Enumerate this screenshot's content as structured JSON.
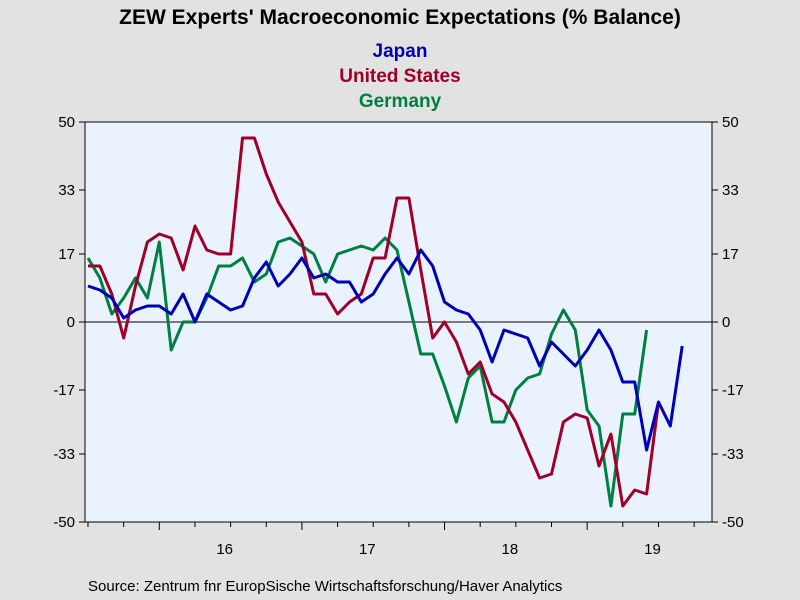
{
  "chart_data": {
    "type": "line",
    "title": "ZEW Experts' Macroeconomic Expectations (% Balance)",
    "source": "Source:  Zentrum fnr EuropSische Wirtschaftsforschung/Haver Analytics",
    "ylim": [
      -50,
      50
    ],
    "yticks": [
      50,
      33,
      17,
      0,
      -17,
      -33,
      -50
    ],
    "ytick_labels": [
      "50",
      "33",
      "17",
      "0",
      "-17",
      "-33",
      "-50"
    ],
    "x_start": "2015-07",
    "x_end": "2019-11",
    "year_labels": [
      "16",
      "17",
      "18",
      "19"
    ],
    "zero_line": true,
    "grid": false,
    "legend_position": "top-center",
    "colors": {
      "plot_bg": "#eaf3fd",
      "page_bg": "#e2e2e2"
    },
    "series": [
      {
        "name": "Japan",
        "color": "#0000b4",
        "values": [
          9,
          8,
          6,
          1,
          3,
          4,
          4,
          2,
          7,
          0,
          7,
          5,
          3,
          4,
          11,
          15,
          9,
          12,
          16,
          11,
          12,
          10,
          10,
          5,
          7,
          12,
          16,
          12,
          18,
          14,
          5,
          3,
          2,
          -2,
          -10,
          -2,
          -3,
          -4,
          -11,
          -5,
          -8,
          -11,
          -7,
          -2,
          -7,
          -15,
          -15,
          -32,
          -20,
          -26,
          -6
        ],
        "legend_color": "#0000b4"
      },
      {
        "name": "United States",
        "color": "#a00028",
        "values": [
          14,
          14,
          7,
          -4,
          9,
          20,
          22,
          21,
          13,
          24,
          18,
          17,
          17,
          46,
          46,
          37,
          30,
          25,
          20,
          7,
          7,
          2,
          5,
          7,
          16,
          16,
          31,
          31,
          13,
          -4,
          0,
          -5,
          -13,
          -10,
          -18,
          -20,
          -25,
          -32,
          -39,
          -38,
          -25,
          -23,
          -24,
          -36,
          -28,
          -46,
          -42,
          -43,
          -20
        ],
        "legend_color": "#a00028"
      },
      {
        "name": "Germany",
        "color": "#008040",
        "values": [
          16,
          11,
          2,
          6,
          11,
          6,
          20,
          -7,
          0,
          0,
          6,
          14,
          14,
          16,
          10,
          12,
          20,
          21,
          19,
          17,
          10,
          17,
          18,
          19,
          18,
          21,
          18,
          5,
          -8,
          -8,
          -16,
          -25,
          -14,
          -11,
          -25,
          -25,
          -17,
          -14,
          -13,
          -3,
          3,
          -2,
          -22,
          -26,
          -46,
          -23,
          -23,
          -2
        ],
        "legend_color": "#008040"
      }
    ]
  }
}
